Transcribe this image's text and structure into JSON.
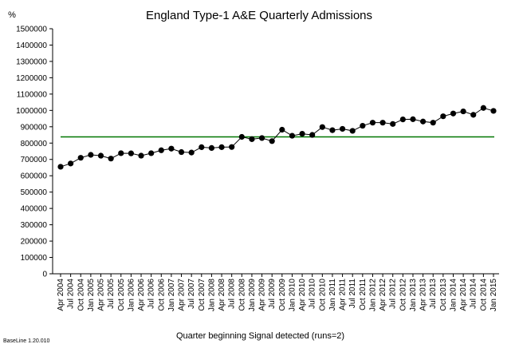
{
  "chart_data": {
    "type": "line",
    "title": "England Type-1 A&E Quarterly Admissions",
    "ylabel": "%",
    "xlabel": "Quarter beginning",
    "signal_text": "Signal detected (runs=2)",
    "footer": "BaseLine 1.20.010",
    "ylim": [
      0,
      1500000
    ],
    "yticks": [
      0,
      100000,
      200000,
      300000,
      400000,
      500000,
      600000,
      700000,
      800000,
      900000,
      1000000,
      1100000,
      1200000,
      1300000,
      1400000,
      1500000
    ],
    "grid": false,
    "categories": [
      "Apr 2004",
      "Jul 2004",
      "Oct 2004",
      "Jan 2005",
      "Apr 2005",
      "Jul 2005",
      "Oct 2005",
      "Jan 2006",
      "Apr 2006",
      "Jul 2006",
      "Oct 2006",
      "Jan 2007",
      "Apr 2007",
      "Jul 2007",
      "Oct 2007",
      "Jan 2008",
      "Apr 2008",
      "Jul 2008",
      "Oct 2008",
      "Jan 2009",
      "Apr 2009",
      "Jul 2009",
      "Oct 2009",
      "Jan 2010",
      "Apr 2010",
      "Jul 2010",
      "Oct 2010",
      "Jan 2011",
      "Apr 2011",
      "Jul 2011",
      "Oct 2011",
      "Jan 2012",
      "Apr 2012",
      "Jul 2012",
      "Oct 2012",
      "Jan 2013",
      "Apr 2013",
      "Jul 2013",
      "Oct 2013",
      "Jan 2014",
      "Apr 2014",
      "Jul 2014",
      "Oct 2014",
      "Jan 2015"
    ],
    "series": [
      {
        "color": "#000000",
        "values": [
          655000,
          675000,
          710000,
          728000,
          723000,
          705000,
          738000,
          737000,
          723000,
          738000,
          756000,
          766000,
          745000,
          742000,
          775000,
          770000,
          775000,
          776000,
          838000,
          824000,
          831000,
          812000,
          882000,
          845000,
          857000,
          850000,
          898000,
          879000,
          887000,
          875000,
          906000,
          925000,
          925000,
          917000,
          945000,
          946000,
          932000,
          925000,
          964000,
          981000,
          994000,
          973000,
          1015000,
          997000
        ]
      }
    ],
    "reference_line": {
      "value": 838000,
      "color": "#007700"
    }
  }
}
